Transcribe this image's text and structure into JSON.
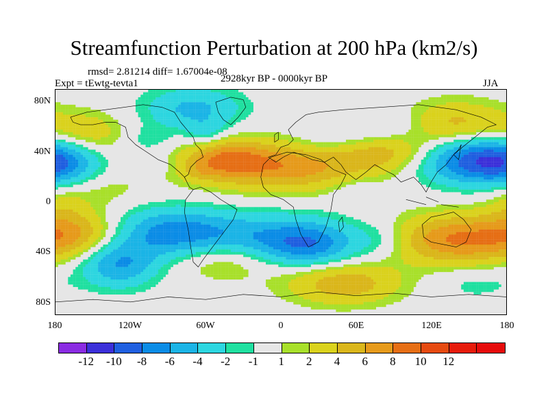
{
  "title": "Streamfunction Perturbation at 200 hPa (km2/s)",
  "rmsd_line": "rmsd= 2.81214 diff= 1.67004e-08",
  "expt_line": "Expt = tEwtg-tevta1",
  "period_line": "2928kyr BP - 0000kyr BP",
  "season": "JJA",
  "lat_ticks": [
    "80N",
    "40N",
    "0",
    "40S",
    "80S"
  ],
  "lon_ticks": [
    "180",
    "120W",
    "60W",
    "0",
    "60E",
    "120E",
    "180"
  ],
  "colorbar": {
    "colors": [
      "#8a2be2",
      "#3b2fd9",
      "#1f5fe0",
      "#0a8ce6",
      "#1ab4e6",
      "#2cd6e0",
      "#1fe0a0",
      "#e6e6e6",
      "#a8e02a",
      "#dad21c",
      "#dab61a",
      "#e69a1a",
      "#e66e14",
      "#e64a10",
      "#e61a0a",
      "#e60a0a"
    ],
    "labels": [
      "-12",
      "-10",
      "-8",
      "-6",
      "-4",
      "-2",
      "-1",
      "1",
      "2",
      "4",
      "6",
      "8",
      "10",
      "12"
    ]
  },
  "field": {
    "levels": [
      -12,
      -10,
      -8,
      -6,
      -4,
      -2,
      -1,
      1,
      2,
      4,
      6,
      8,
      10,
      12
    ],
    "anomalies": [
      {
        "lon": -155,
        "lat": 55,
        "amp": 3.5,
        "rlon": 22,
        "rlat": 12
      },
      {
        "lon": -175,
        "lat": 30,
        "amp": -3.5,
        "rlon": 20,
        "rlat": 12
      },
      {
        "lon": -140,
        "lat": 10,
        "amp": 1.5,
        "rlon": 22,
        "rlat": 10
      },
      {
        "lon": -105,
        "lat": 50,
        "amp": -1.8,
        "rlon": 14,
        "rlat": 8
      },
      {
        "lon": -100,
        "lat": 30,
        "amp": -1.2,
        "rlon": 12,
        "rlat": 7
      },
      {
        "lon": -70,
        "lat": 75,
        "amp": -4.5,
        "rlon": 28,
        "rlat": 12
      },
      {
        "lon": -60,
        "lat": 55,
        "amp": -2.5,
        "rlon": 12,
        "rlat": 8
      },
      {
        "lon": -65,
        "lat": 25,
        "amp": 1.5,
        "rlon": 10,
        "rlat": 6
      },
      {
        "lon": 0,
        "lat": 30,
        "amp": 8.0,
        "rlon": 50,
        "rlat": 14
      },
      {
        "lon": -45,
        "lat": 35,
        "amp": 4.5,
        "rlon": 20,
        "rlat": 10
      },
      {
        "lon": 40,
        "lat": 45,
        "amp": -3.0,
        "rlon": 28,
        "rlat": 10
      },
      {
        "lon": 80,
        "lat": 40,
        "amp": 4.5,
        "rlon": 30,
        "rlat": 10
      },
      {
        "lon": 60,
        "lat": 10,
        "amp": -1.5,
        "rlon": 15,
        "rlat": 8
      },
      {
        "lon": 90,
        "lat": 60,
        "amp": -1.8,
        "rlon": 25,
        "rlat": 10
      },
      {
        "lon": 140,
        "lat": 60,
        "amp": 5.5,
        "rlon": 30,
        "rlat": 14
      },
      {
        "lon": 155,
        "lat": 35,
        "amp": -10.0,
        "rlon": 32,
        "rlat": 14
      },
      {
        "lon": -165,
        "lat": -25,
        "amp": 5.5,
        "rlon": 25,
        "rlat": 13
      },
      {
        "lon": -130,
        "lat": -50,
        "amp": -6.0,
        "rlon": 22,
        "rlat": 13
      },
      {
        "lon": -85,
        "lat": -25,
        "amp": -7.0,
        "rlon": 35,
        "rlat": 14
      },
      {
        "lon": -45,
        "lat": -45,
        "amp": 3.5,
        "rlon": 30,
        "rlat": 12
      },
      {
        "lon": -5,
        "lat": -30,
        "amp": -5.5,
        "rlon": 40,
        "rlat": 14
      },
      {
        "lon": 25,
        "lat": -35,
        "amp": -4.5,
        "rlon": 25,
        "rlat": 12
      },
      {
        "lon": 50,
        "lat": -65,
        "amp": 5.5,
        "rlon": 32,
        "rlat": 12
      },
      {
        "lon": 80,
        "lat": -30,
        "amp": -2.0,
        "rlon": 15,
        "rlat": 10
      },
      {
        "lon": 140,
        "lat": -30,
        "amp": 8.0,
        "rlon": 35,
        "rlat": 14
      },
      {
        "lon": -175,
        "lat": 0,
        "amp": 2.0,
        "rlon": 15,
        "rlat": 10
      },
      {
        "lon": 155,
        "lat": -65,
        "amp": -1.5,
        "rlon": 25,
        "rlat": 10
      }
    ]
  }
}
